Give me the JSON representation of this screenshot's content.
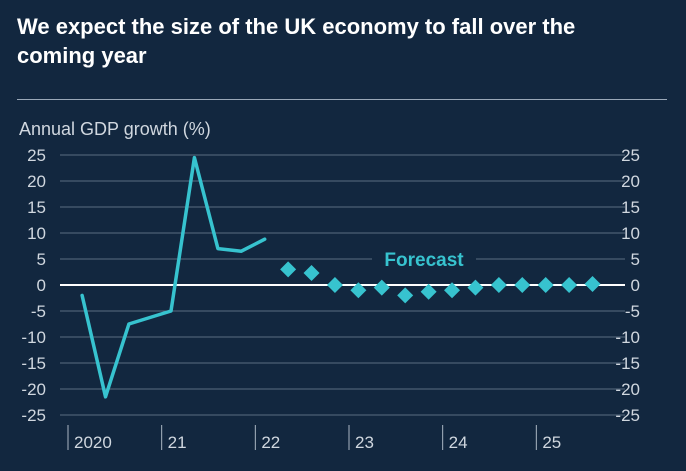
{
  "title": "We expect the size of the UK economy to fall over the coming year",
  "colors": {
    "background": "#12273f",
    "series": "#37c3cf",
    "grid": "#5a6d82",
    "zero_line": "#ffffff",
    "text": "#d0d7df"
  },
  "chart_data": {
    "type": "line",
    "ylabel": "Annual GDP growth (%)",
    "ylim": [
      -25,
      25
    ],
    "yticks": [
      25,
      20,
      15,
      10,
      5,
      0,
      -5,
      -10,
      -15,
      -20,
      -25
    ],
    "xlim": [
      2020.0,
      2026.0
    ],
    "xticks": [
      {
        "x": 2020.0,
        "label": "2020"
      },
      {
        "x": 2021.0,
        "label": "21"
      },
      {
        "x": 2022.0,
        "label": "22"
      },
      {
        "x": 2023.0,
        "label": "23"
      },
      {
        "x": 2024.0,
        "label": "24"
      },
      {
        "x": 2025.0,
        "label": "25"
      }
    ],
    "grid": true,
    "annotation": "Forecast",
    "series": [
      {
        "style": "line",
        "points": [
          {
            "x": 2020.15,
            "y": -2
          },
          {
            "x": 2020.4,
            "y": -21.5
          },
          {
            "x": 2020.65,
            "y": -7.5
          },
          {
            "x": 2021.1,
            "y": -5
          },
          {
            "x": 2021.35,
            "y": 24.5
          },
          {
            "x": 2021.6,
            "y": 7
          },
          {
            "x": 2021.85,
            "y": 6.5
          },
          {
            "x": 2022.1,
            "y": 8.8
          }
        ]
      },
      {
        "style": "markers",
        "points": [
          {
            "x": 2022.35,
            "y": 3
          },
          {
            "x": 2022.6,
            "y": 2.3
          },
          {
            "x": 2022.85,
            "y": 0
          },
          {
            "x": 2023.1,
            "y": -1
          },
          {
            "x": 2023.35,
            "y": -0.5
          },
          {
            "x": 2023.6,
            "y": -2
          },
          {
            "x": 2023.85,
            "y": -1.3
          },
          {
            "x": 2024.1,
            "y": -1
          },
          {
            "x": 2024.35,
            "y": -0.5
          },
          {
            "x": 2024.6,
            "y": 0
          },
          {
            "x": 2024.85,
            "y": 0
          },
          {
            "x": 2025.1,
            "y": 0
          },
          {
            "x": 2025.35,
            "y": 0
          },
          {
            "x": 2025.6,
            "y": 0.2
          }
        ]
      }
    ]
  }
}
